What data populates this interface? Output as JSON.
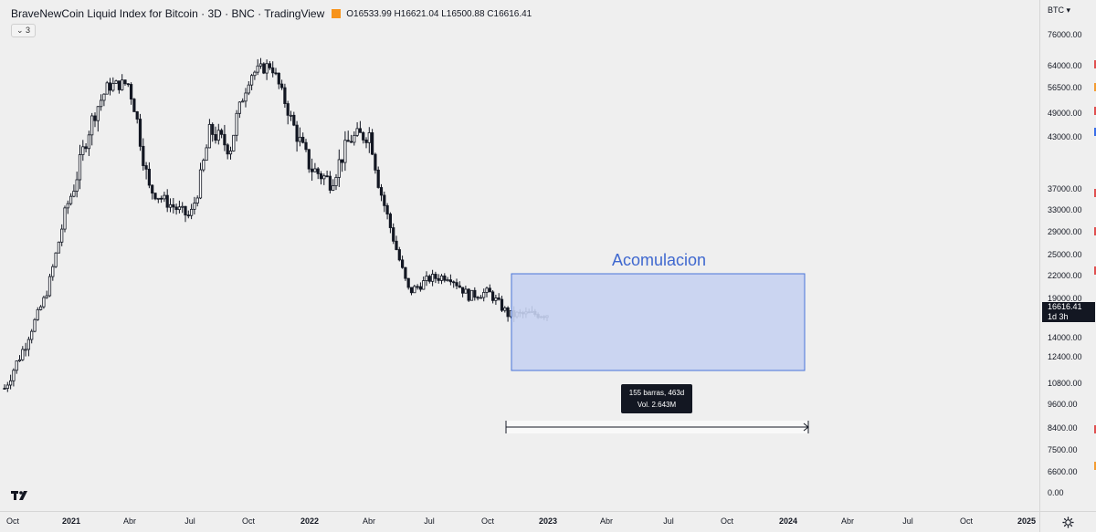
{
  "header": {
    "title": "BraveNewCoin Liquid Index for Bitcoin · 3D · BNC · TradingView",
    "ohlc": "O16533.99 H16621.04 L16500.88 C16616.41",
    "collapse_label": "⌄ 3",
    "flag_color": "#f7931a"
  },
  "price_scale": {
    "currency": "BTC ▾",
    "labels": [
      "76000.00",
      "64000.00",
      "56500.00",
      "49000.00",
      "43000.00",
      "37000.00",
      "33000.00",
      "29000.00",
      "25000.00",
      "22000.00",
      "19000.00",
      "14000.00",
      "12400.00",
      "10800.00",
      "9600.00",
      "8400.00",
      "7500.00",
      "6600.00",
      "0.00"
    ],
    "last_price": "16616.41",
    "countdown": "1d 3h"
  },
  "time_scale": {
    "labels": [
      "Oct",
      "2021",
      "Abr",
      "Jul",
      "Oct",
      "2022",
      "Abr",
      "Jul",
      "Oct",
      "2023",
      "Abr",
      "Jul",
      "Oct",
      "2024",
      "Abr",
      "Jul",
      "Oct",
      "2025"
    ]
  },
  "annotations": {
    "rectangle_label": "Acomulacion",
    "range_bars": "155 barras, 463d",
    "range_vol": "Vol. 2.643M",
    "rect_color": "#c6d2f1",
    "rect_border": "#4a74d8"
  },
  "chart_data": {
    "type": "line",
    "title": "BraveNewCoin Liquid Index for Bitcoin · 3D · BNC · TradingView",
    "x": [
      "2020-10",
      "2020-11",
      "2020-12",
      "2021-01",
      "2021-02",
      "2021-03",
      "2021-04",
      "2021-05",
      "2021-06",
      "2021-07",
      "2021-08",
      "2021-09",
      "2021-10",
      "2021-11",
      "2021-12",
      "2022-01",
      "2022-02",
      "2022-03",
      "2022-04",
      "2022-05",
      "2022-06",
      "2022-07",
      "2022-08",
      "2022-09",
      "2022-10",
      "2022-11",
      "2022-12"
    ],
    "series": [
      {
        "values": [
          10500,
          13500,
          19000,
          33000,
          45000,
          57000,
          58000,
          37000,
          34000,
          31500,
          46000,
          43000,
          61000,
          64500,
          48000,
          40000,
          38000,
          44500,
          45500,
          30000,
          19500,
          21500,
          22000,
          19000,
          19500,
          16500,
          16616
        ]
      }
    ],
    "price_axis": "log",
    "ylim": [
      6600,
      76000
    ],
    "accumulation_zone": {
      "x_start": "2022-11",
      "x_end": "2024-02",
      "price_low": 12000,
      "price_high": 20300
    }
  }
}
